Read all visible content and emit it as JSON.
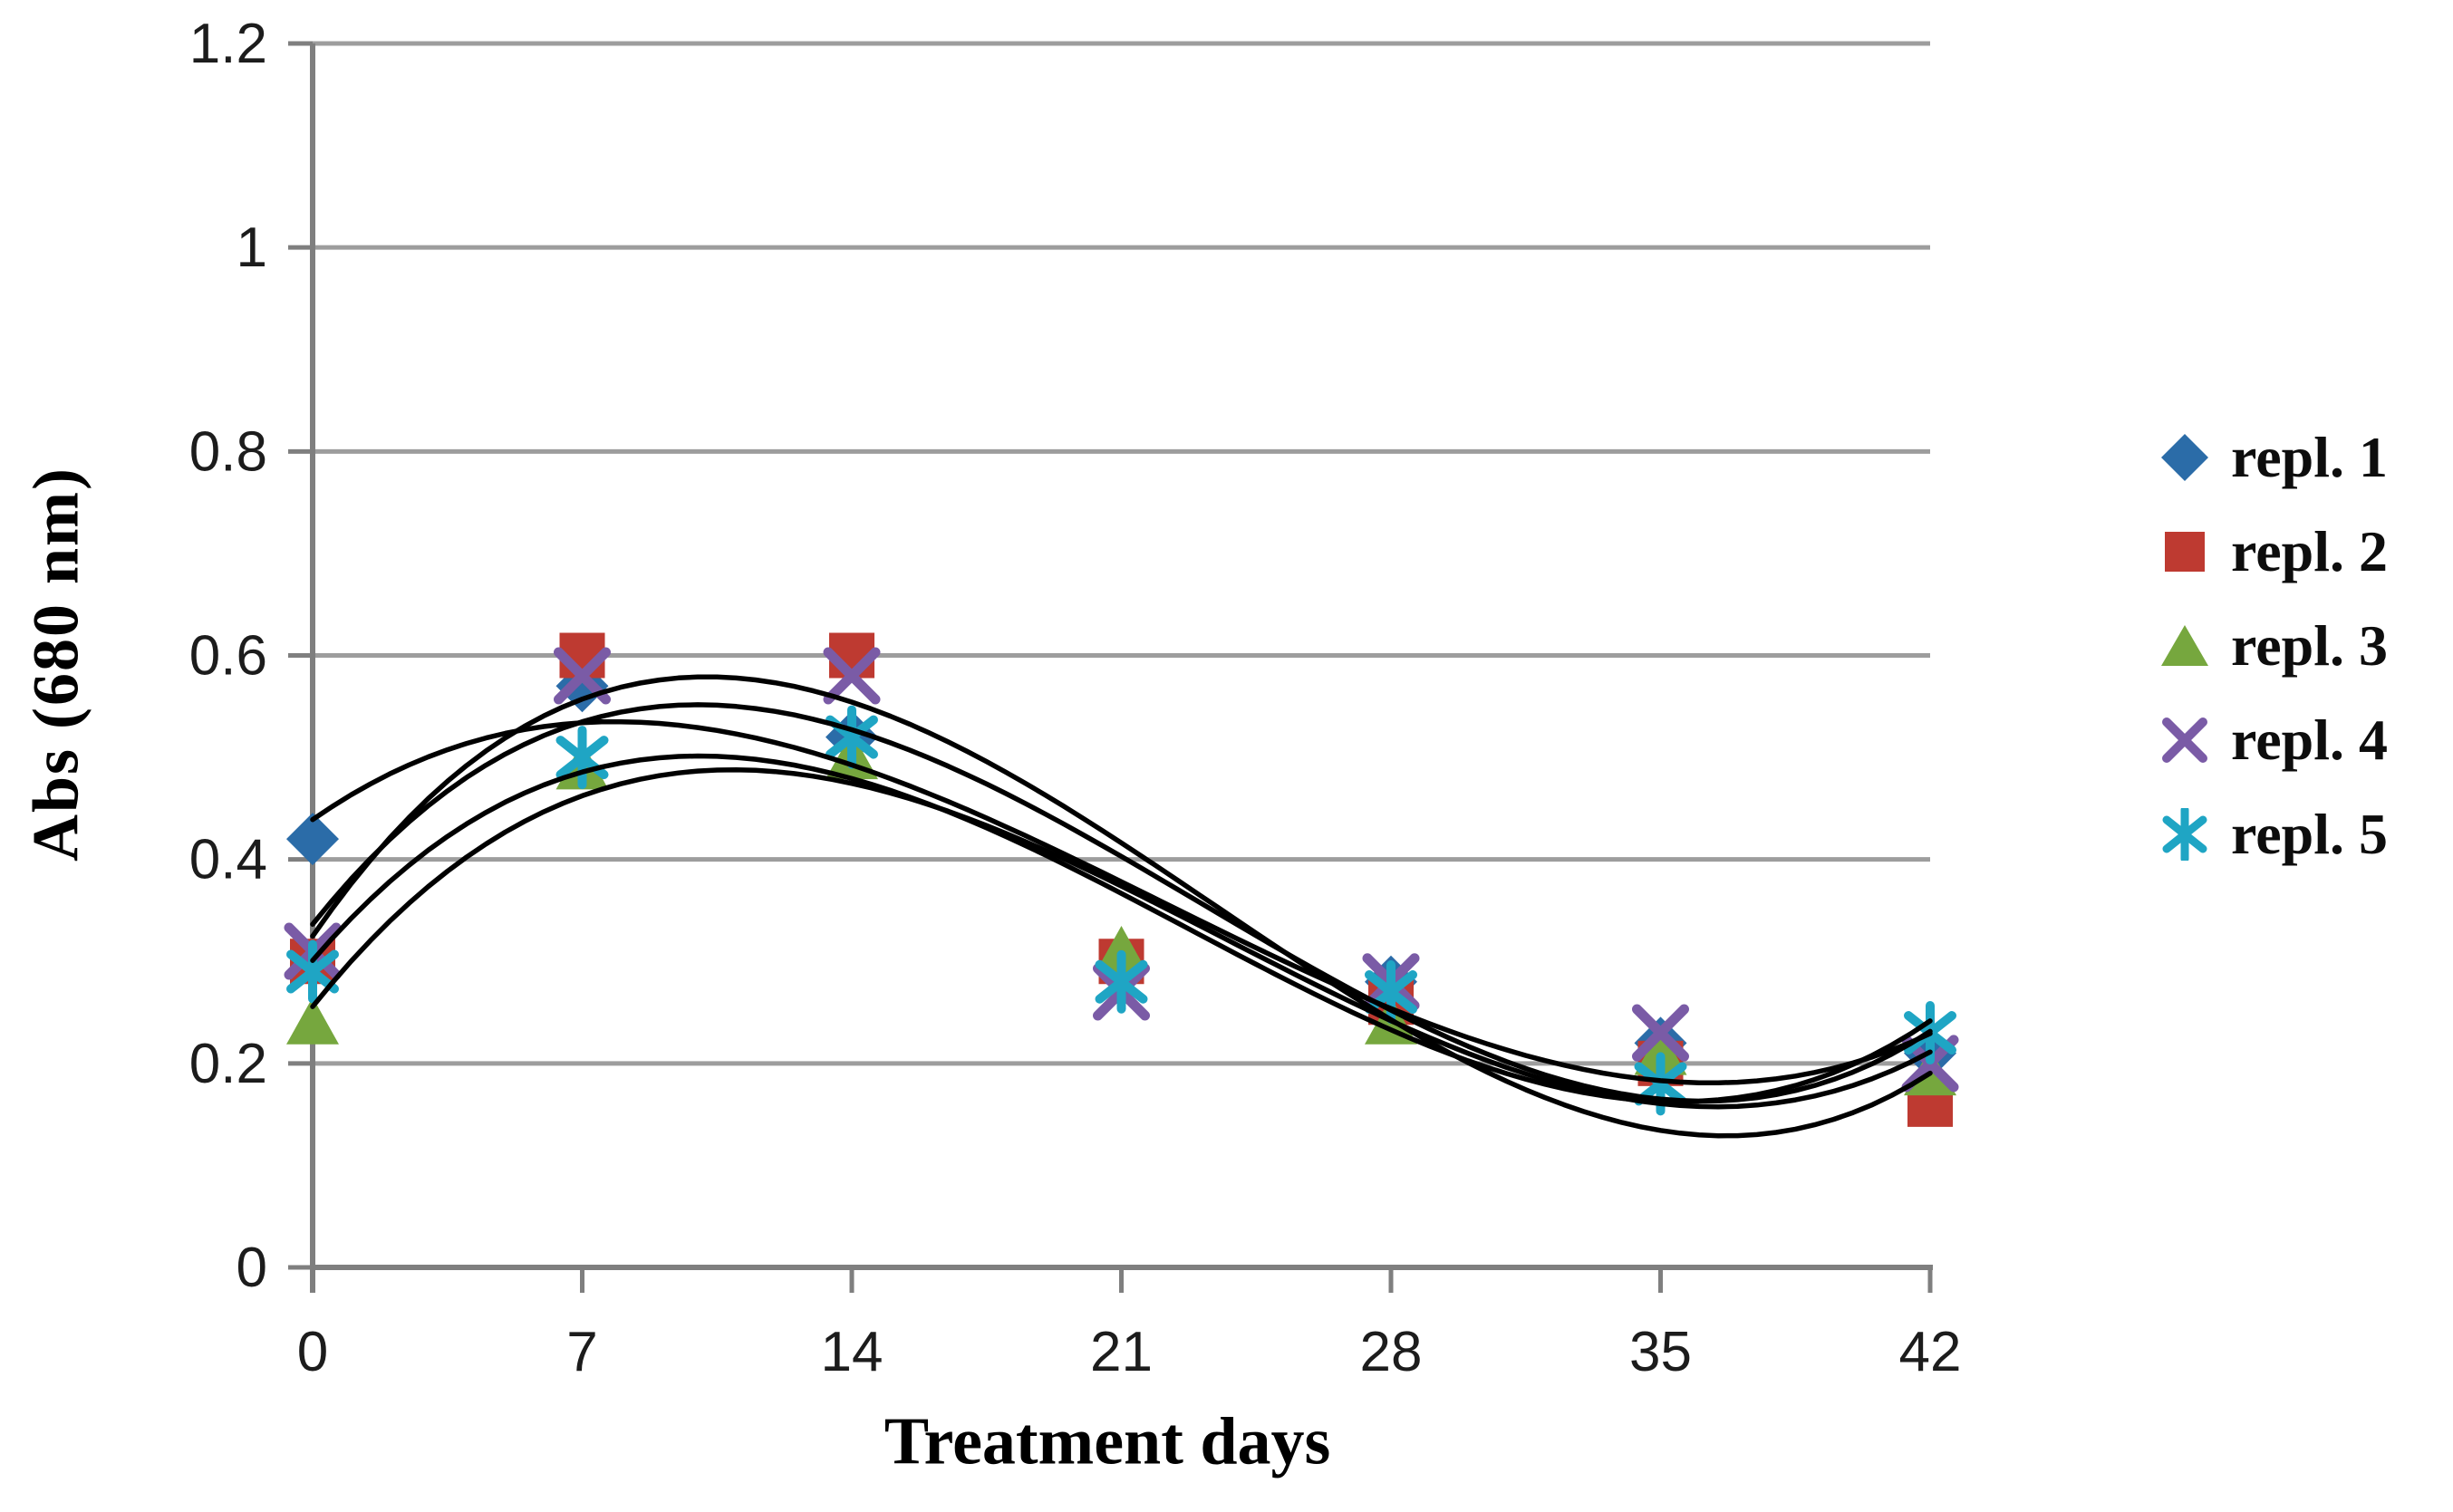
{
  "chart_data": {
    "type": "scatter",
    "title": "",
    "xlabel": "Treatment days",
    "ylabel": "Abs (680 nm)",
    "x": [
      0,
      7,
      14,
      21,
      28,
      35,
      42
    ],
    "x_tick_labels": [
      "0",
      "7",
      "14",
      "21",
      "28",
      "35",
      "42"
    ],
    "y_ticks": [
      0,
      0.2,
      0.4,
      0.6,
      0.8,
      1,
      1.2
    ],
    "y_tick_labels": [
      "0",
      "0.2",
      "0.4",
      "0.6",
      "0.8",
      "1",
      "1.2"
    ],
    "xlim": [
      0,
      42
    ],
    "ylim": [
      0,
      1.2
    ],
    "grid": "horizontal",
    "legend_position": "right",
    "trendline": "cubic-polynomial-per-series",
    "trendline_color": "#000000",
    "gridline_color": "#9d9d9d",
    "axis_color": "#7f7f7f",
    "tick_label_color": "#1c1c1c",
    "series": [
      {
        "name": "repl. 1",
        "marker": "diamond",
        "color": "#2B6CA8",
        "values": [
          0.42,
          0.57,
          0.52,
          0.29,
          0.28,
          0.22,
          0.21
        ]
      },
      {
        "name": "repl. 2",
        "marker": "square",
        "color": "#BE3A31",
        "values": [
          0.3,
          0.6,
          0.6,
          0.3,
          0.26,
          0.2,
          0.16
        ]
      },
      {
        "name": "repl. 3",
        "marker": "triangle",
        "color": "#76A73E",
        "values": [
          0.24,
          0.49,
          0.5,
          0.31,
          0.24,
          0.21,
          0.19
        ]
      },
      {
        "name": "repl. 4",
        "marker": "x",
        "color": "#7A5BA6",
        "values": [
          0.31,
          0.58,
          0.58,
          0.27,
          0.28,
          0.23,
          0.2
        ]
      },
      {
        "name": "repl. 5",
        "marker": "asterisk",
        "color": "#1FA5C4",
        "values": [
          0.29,
          0.5,
          0.52,
          0.28,
          0.27,
          0.18,
          0.23
        ]
      }
    ]
  }
}
